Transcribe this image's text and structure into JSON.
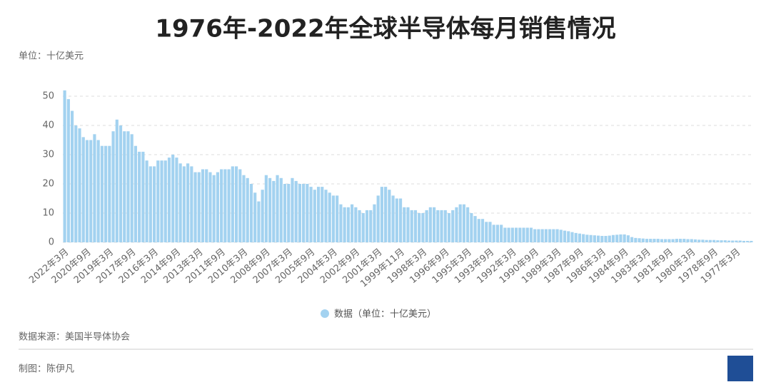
{
  "chart_data": {
    "type": "bar",
    "title": "1976年-2022年全球半导体每月销售情况",
    "unit_label": "单位：十亿美元",
    "source": "数据来源：美国半导体协会",
    "credit": "制图：陈伊凡",
    "categories": [
      "2022年3月",
      null,
      null,
      null,
      null,
      null,
      "2020年9月",
      null,
      null,
      null,
      null,
      null,
      "2019年3月",
      null,
      null,
      null,
      null,
      null,
      "2017年9月",
      null,
      null,
      null,
      null,
      null,
      "2016年3月",
      null,
      null,
      null,
      null,
      null,
      "2014年9月",
      null,
      null,
      null,
      null,
      null,
      "2013年3月",
      null,
      null,
      null,
      null,
      null,
      "2011年9月",
      null,
      null,
      null,
      null,
      null,
      "2010年3月",
      null,
      null,
      null,
      null,
      null,
      "2008年9月",
      null,
      null,
      null,
      null,
      null,
      "2007年3月",
      null,
      null,
      null,
      null,
      null,
      "2005年9月",
      null,
      null,
      null,
      null,
      null,
      "2004年3月",
      null,
      null,
      null,
      null,
      null,
      "2002年9月",
      null,
      null,
      null,
      null,
      null,
      "2001年3月",
      null,
      null,
      null,
      null,
      null,
      "1999年11月",
      null,
      null,
      null,
      null,
      null,
      "1998年3月",
      null,
      null,
      null,
      null,
      null,
      "1996年9月",
      null,
      null,
      null,
      null,
      null,
      "1995年3月",
      null,
      null,
      null,
      null,
      null,
      "1993年9月",
      null,
      null,
      null,
      null,
      null,
      "1992年3月",
      null,
      null,
      null,
      null,
      null,
      "1990年9月",
      null,
      null,
      null,
      null,
      null,
      "1989年3月",
      null,
      null,
      null,
      null,
      null,
      "1987年9月",
      null,
      null,
      null,
      null,
      null,
      "1986年3月",
      null,
      null,
      null,
      null,
      null,
      "1984年9月",
      null,
      null,
      null,
      null,
      null,
      "1983年3月",
      null,
      null,
      null,
      null,
      null,
      "1981年9月",
      null,
      null,
      null,
      null,
      null,
      "1980年3月",
      null,
      null,
      null,
      null,
      null,
      "1978年9月",
      null,
      null,
      null,
      null,
      null,
      "1977年3月",
      null,
      null,
      null,
      null
    ],
    "series": [
      {
        "name": "数据（单位：十亿美元）",
        "color": "#a3d2f0",
        "values": [
          52,
          49,
          45,
          40,
          39,
          36,
          35,
          35,
          37,
          35,
          33,
          33,
          33,
          38,
          42,
          40,
          38,
          38,
          37,
          33,
          31,
          31,
          28,
          26,
          26,
          28,
          28,
          28,
          29,
          30,
          29,
          27,
          26,
          27,
          26,
          24,
          24,
          25,
          25,
          24,
          23,
          24,
          25,
          25,
          25,
          26,
          26,
          25,
          23,
          22,
          20,
          17,
          14,
          18,
          23,
          22,
          21,
          23,
          22,
          20,
          20,
          22,
          21,
          20,
          20,
          20,
          19,
          18,
          19,
          19,
          18,
          17,
          16,
          16,
          13,
          12,
          12,
          13,
          12,
          11,
          10,
          11,
          11,
          13,
          16,
          19,
          19,
          18,
          16,
          15,
          15,
          12,
          12,
          11,
          11,
          10,
          10,
          11,
          12,
          12,
          11,
          11,
          11,
          10,
          11,
          12,
          13,
          13,
          12,
          10,
          9,
          8,
          8,
          7,
          7,
          6,
          6,
          6,
          5,
          5,
          5,
          5,
          5,
          5,
          5,
          5,
          4.5,
          4.5,
          4.5,
          4.5,
          4.5,
          4.5,
          4.5,
          4.3,
          4,
          3.8,
          3.5,
          3.2,
          3,
          2.8,
          2.6,
          2.5,
          2.4,
          2.3,
          2.2,
          2.2,
          2.3,
          2.5,
          2.6,
          2.7,
          2.7,
          2.4,
          1.8,
          1.5,
          1.4,
          1.3,
          1.2,
          1.2,
          1.2,
          1.2,
          1.1,
          1.1,
          1.1,
          1.1,
          1.2,
          1.2,
          1.2,
          1.1,
          1.1,
          1,
          0.9,
          0.9,
          0.8,
          0.8,
          0.8,
          0.7,
          0.7,
          0.7,
          0.6,
          0.6,
          0.6,
          0.6,
          0.5,
          0.5,
          0.5
        ]
      }
    ],
    "ylim": [
      0,
      50
    ],
    "yticks": [
      0,
      10,
      20,
      30,
      40,
      50
    ],
    "grid": true
  }
}
